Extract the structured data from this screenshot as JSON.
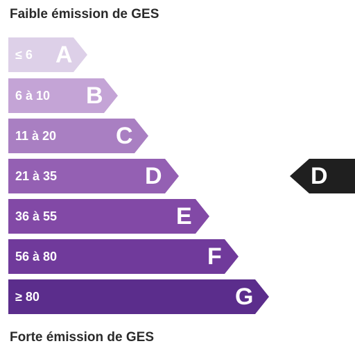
{
  "labels": {
    "top": "Faible émission de GES",
    "bottom": "Forte émission de GES"
  },
  "scale": [
    {
      "letter": "A",
      "range": "≤ 6",
      "color": "#ddd0e8"
    },
    {
      "letter": "B",
      "range": "6 à 10",
      "color": "#c4a4d6"
    },
    {
      "letter": "C",
      "range": "11 à 20",
      "color": "#a97fc2"
    },
    {
      "letter": "D",
      "range": "21 à 35",
      "color": "#9460b3"
    },
    {
      "letter": "E",
      "range": "36 à 55",
      "color": "#8249a6"
    },
    {
      "letter": "F",
      "range": "56 à 80",
      "color": "#703a9b"
    },
    {
      "letter": "G",
      "range": "≥ 80",
      "color": "#5b2d8c"
    }
  ],
  "current": {
    "letter": "D",
    "color": "#1f1f1f"
  }
}
